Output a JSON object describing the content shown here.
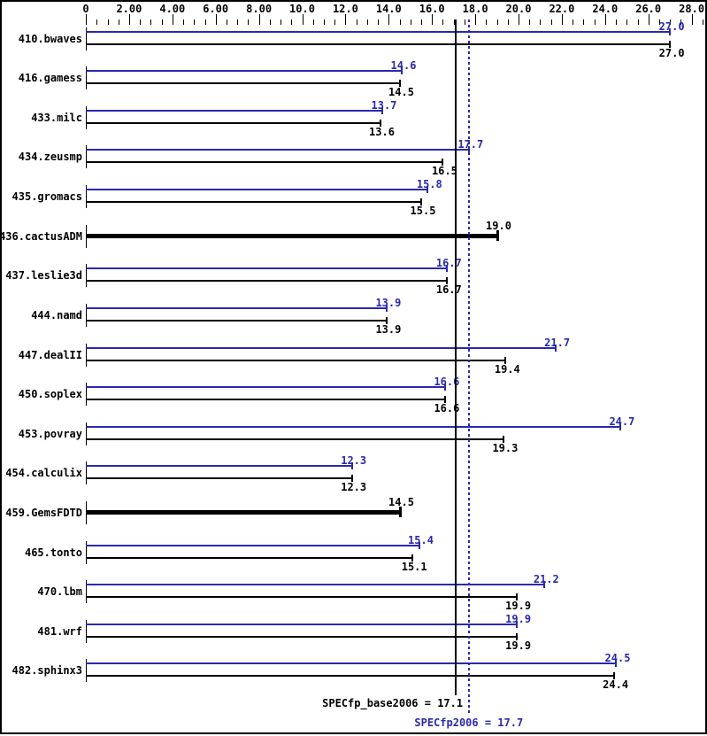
{
  "chart_data": {
    "type": "bar",
    "orientation": "horizontal",
    "legend_position": "none",
    "grid": false,
    "axis": {
      "min": 0,
      "max": 28,
      "major_tick_interval": 2.0,
      "minor_tick_interval": 0.5,
      "minor_tick_max": 28.5,
      "major_tick_labels": [
        "0",
        "2.00",
        "4.00",
        "6.00",
        "8.00",
        "10.0",
        "12.0",
        "14.0",
        "16.0",
        "18.0",
        "20.0",
        "22.0",
        "24.0",
        "26.0",
        "28.0"
      ]
    },
    "series_colors": {
      "peak": "#2929ae",
      "base": "#000000"
    },
    "benchmarks": [
      {
        "name": "410.bwaves",
        "peak": 27.0,
        "base": 27.0,
        "base_only": false
      },
      {
        "name": "416.gamess",
        "peak": 14.6,
        "base": 14.5,
        "base_only": false
      },
      {
        "name": "433.milc",
        "peak": 13.7,
        "base": 13.6,
        "base_only": false
      },
      {
        "name": "434.zeusmp",
        "peak": 17.7,
        "base": 16.5,
        "base_only": false
      },
      {
        "name": "435.gromacs",
        "peak": 15.8,
        "base": 15.5,
        "base_only": false
      },
      {
        "name": "436.cactusADM",
        "peak": null,
        "base": 19.0,
        "base_only": true
      },
      {
        "name": "437.leslie3d",
        "peak": 16.7,
        "base": 16.7,
        "base_only": false
      },
      {
        "name": "444.namd",
        "peak": 13.9,
        "base": 13.9,
        "base_only": false
      },
      {
        "name": "447.dealII",
        "peak": 21.7,
        "base": 19.4,
        "base_only": false
      },
      {
        "name": "450.soplex",
        "peak": 16.6,
        "base": 16.6,
        "base_only": false
      },
      {
        "name": "453.povray",
        "peak": 24.7,
        "base": 19.3,
        "base_only": false
      },
      {
        "name": "454.calculix",
        "peak": 12.3,
        "base": 12.3,
        "base_only": false
      },
      {
        "name": "459.GemsFDTD",
        "peak": null,
        "base": 14.5,
        "base_only": true
      },
      {
        "name": "465.tonto",
        "peak": 15.4,
        "base": 15.1,
        "base_only": false
      },
      {
        "name": "470.lbm",
        "peak": 21.2,
        "base": 19.9,
        "base_only": false
      },
      {
        "name": "481.wrf",
        "peak": 19.9,
        "base": 19.9,
        "base_only": false
      },
      {
        "name": "482.sphinx3",
        "peak": 24.5,
        "base": 24.4,
        "base_only": false
      }
    ],
    "reference_lines": [
      {
        "name": "base_mean",
        "label": "SPECfp_base2006 = 17.1",
        "value": 17.1,
        "style": "solid",
        "color": "#000000"
      },
      {
        "name": "peak_mean",
        "label": "SPECfp2006 = 17.7",
        "value": 17.7,
        "style": "dotted",
        "color": "#2929ae"
      }
    ]
  }
}
